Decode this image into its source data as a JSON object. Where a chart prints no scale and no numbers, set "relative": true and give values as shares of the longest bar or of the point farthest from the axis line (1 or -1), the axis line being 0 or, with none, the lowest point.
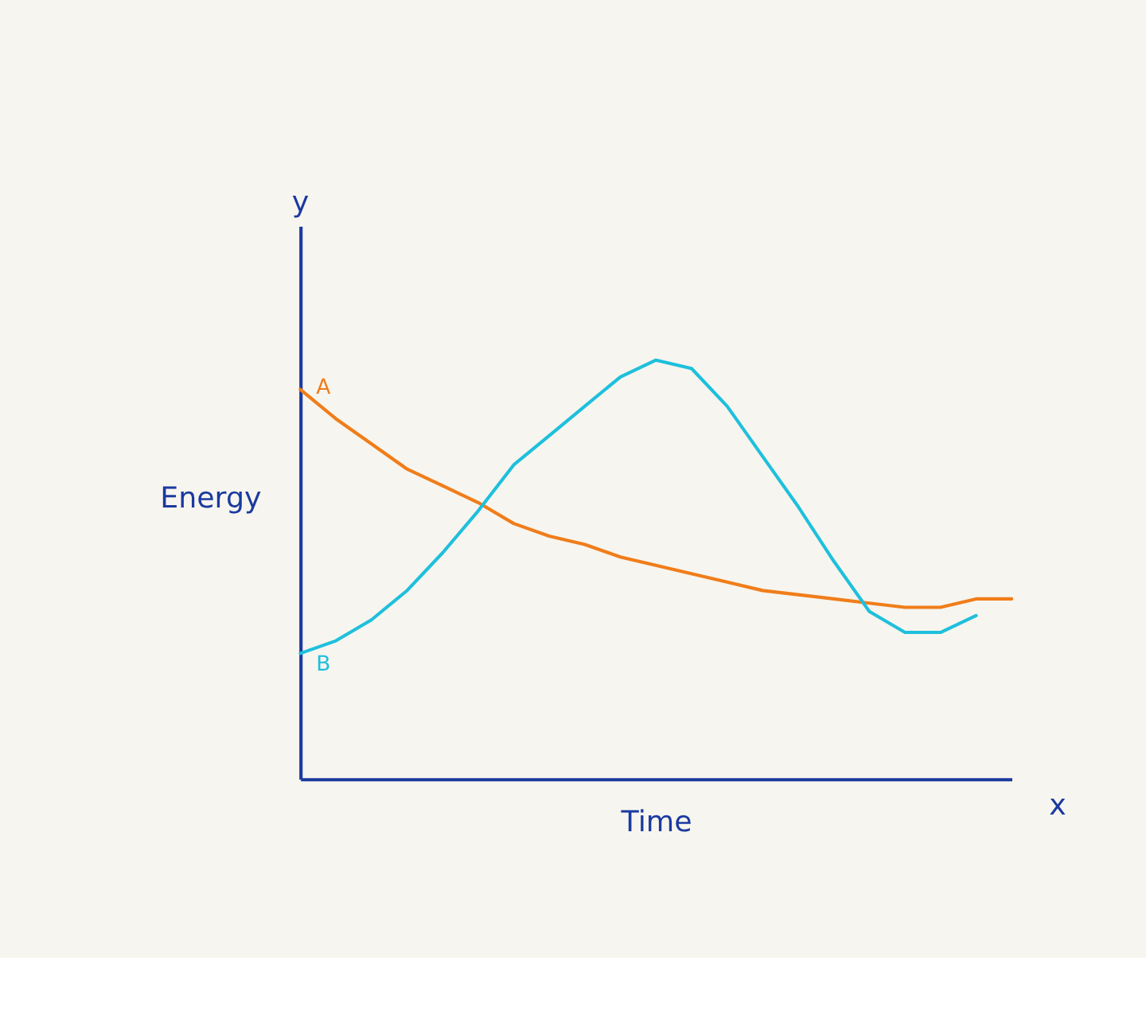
{
  "chart_data": {
    "type": "line",
    "relative": true,
    "xlabel": "Time",
    "ylabel": "Energy",
    "annotations": [
      "y",
      "x"
    ],
    "categories": [
      null,
      null,
      null,
      null,
      null,
      null,
      null,
      null,
      null,
      null,
      null,
      null,
      null,
      null,
      null,
      null,
      null,
      null,
      null,
      null,
      null
    ],
    "marker": "none",
    "line_style": "solid",
    "series": [
      {
        "name": "A",
        "color": "#f07d1a",
        "values": [
          0.93,
          0.86,
          0.8,
          0.74,
          0.7,
          0.66,
          0.61,
          0.58,
          0.56,
          0.53,
          0.51,
          0.49,
          0.47,
          0.45,
          0.44,
          0.43,
          0.42,
          0.41,
          0.41,
          0.43,
          0.43
        ]
      },
      {
        "name": "B",
        "color": "#1ec0dc",
        "values": [
          0.3,
          0.33,
          0.38,
          0.45,
          0.54,
          0.64,
          0.75,
          0.82,
          0.89,
          0.96,
          1.0,
          0.98,
          0.89,
          0.77,
          0.65,
          0.52,
          0.4,
          0.35,
          0.35,
          0.39,
          null
        ]
      }
    ]
  }
}
